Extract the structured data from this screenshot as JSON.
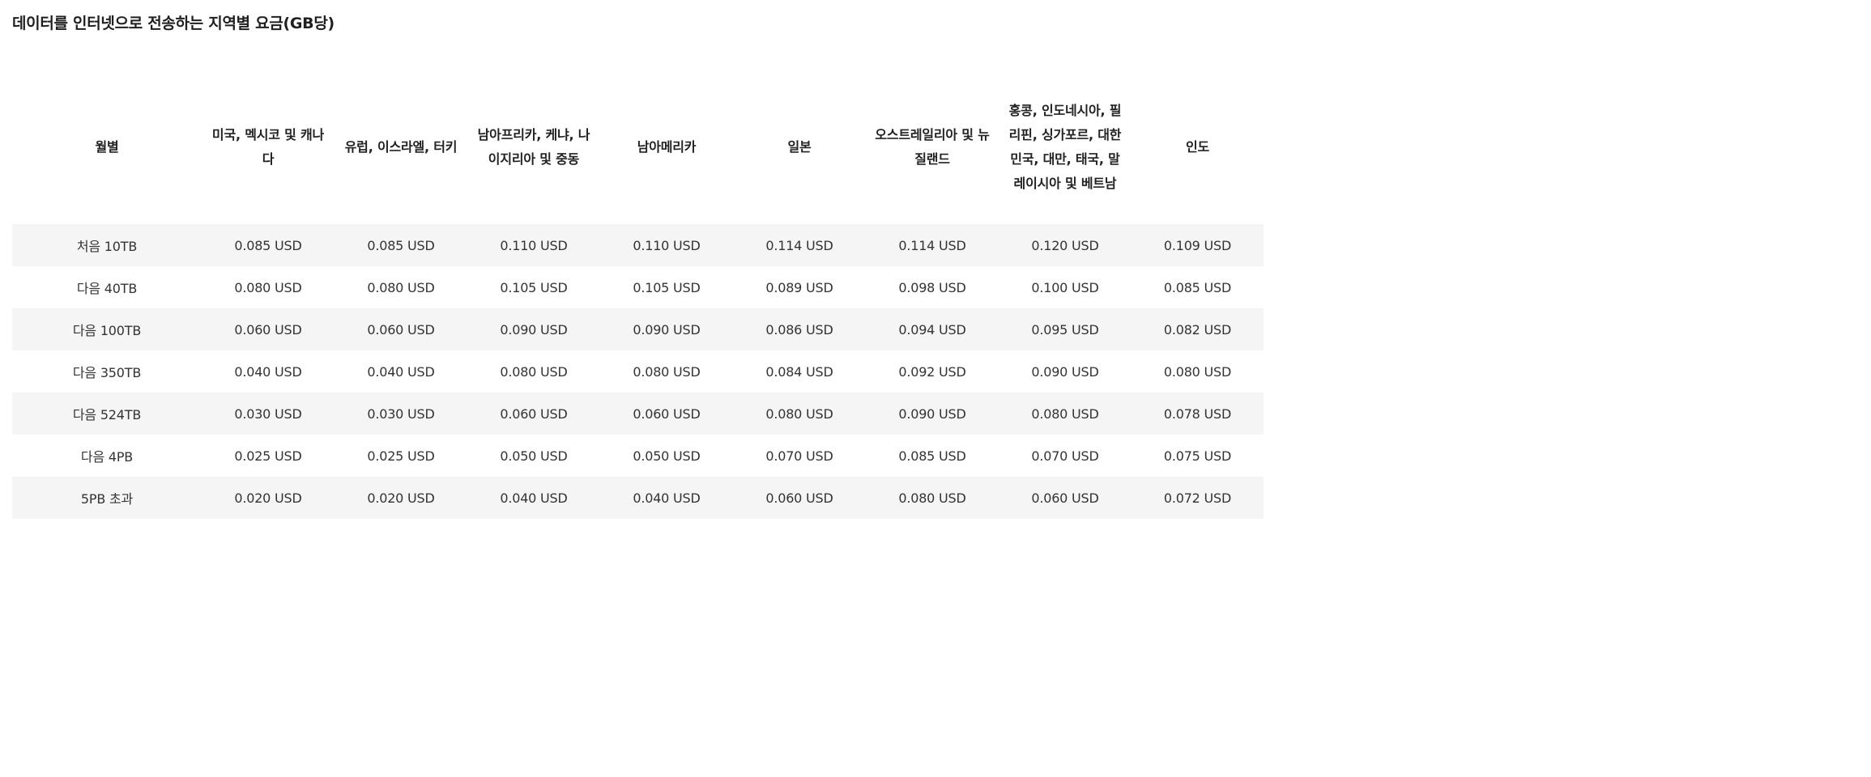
{
  "title": "데이터를 인터넷으로 전송하는 지역별 요금(GB당)",
  "table": {
    "headers": [
      "월별",
      "미국, 멕시코 및 캐나다",
      "유럽, 이스라엘, 터키",
      "남아프리카, 케냐, 나이지리아 및 중동",
      "남아메리카",
      "일본",
      "오스트레일리아 및 뉴질랜드",
      "홍콩, 인도네시아, 필리핀, 싱가포르, 대한민국, 대만, 태국, 말레이시아 및 베트남",
      "인도"
    ],
    "rows": [
      [
        "처음 10TB",
        "0.085 USD",
        "0.085 USD",
        "0.110 USD",
        "0.110 USD",
        "0.114 USD",
        "0.114 USD",
        "0.120 USD",
        "0.109 USD"
      ],
      [
        "다음 40TB",
        "0.080 USD",
        "0.080 USD",
        "0.105 USD",
        "0.105 USD",
        "0.089 USD",
        "0.098 USD",
        "0.100 USD",
        "0.085 USD"
      ],
      [
        "다음 100TB",
        "0.060 USD",
        "0.060 USD",
        "0.090 USD",
        "0.090 USD",
        "0.086 USD",
        "0.094 USD",
        "0.095 USD",
        "0.082 USD"
      ],
      [
        "다음 350TB",
        "0.040 USD",
        "0.040 USD",
        "0.080 USD",
        "0.080 USD",
        "0.084 USD",
        "0.092 USD",
        "0.090 USD",
        "0.080 USD"
      ],
      [
        "다음 524TB",
        "0.030 USD",
        "0.030 USD",
        "0.060 USD",
        "0.060 USD",
        "0.080 USD",
        "0.090 USD",
        "0.080 USD",
        "0.078 USD"
      ],
      [
        "다음 4PB",
        "0.025 USD",
        "0.025 USD",
        "0.050 USD",
        "0.050 USD",
        "0.070 USD",
        "0.085 USD",
        "0.070 USD",
        "0.075 USD"
      ],
      [
        "5PB 초과",
        "0.020 USD",
        "0.020 USD",
        "0.040 USD",
        "0.040 USD",
        "0.060 USD",
        "0.080 USD",
        "0.060 USD",
        "0.072 USD"
      ]
    ]
  },
  "colors": {
    "stripe": "#f5f5f5",
    "background": "#ffffff",
    "text": "#222222"
  }
}
